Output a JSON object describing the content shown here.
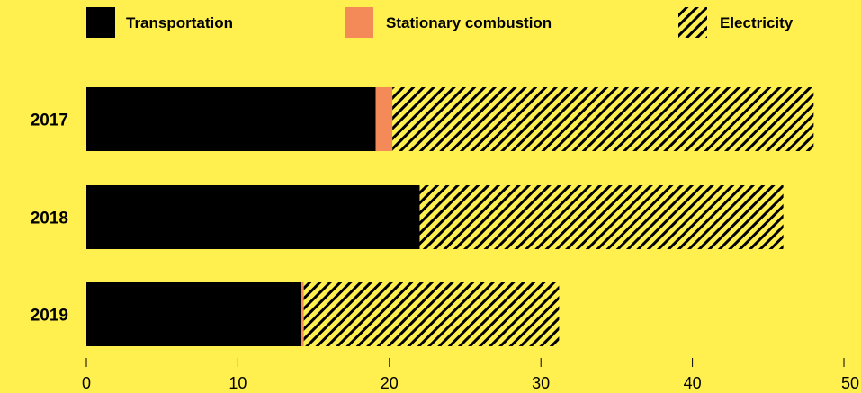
{
  "colors": {
    "background": "#FFF04F",
    "transportation": "#000000",
    "stationary_combustion": "#F48A58",
    "electricity_stripe": "#000000"
  },
  "chart_data": {
    "type": "bar",
    "orientation": "horizontal",
    "stacked": true,
    "title": "",
    "xlabel": "",
    "ylabel": "",
    "categories": [
      "2017",
      "2018",
      "2019"
    ],
    "series": [
      {
        "name": "Transportation",
        "values": [
          19.1,
          22.0,
          14.2
        ],
        "fill": "solid",
        "color": "#000000"
      },
      {
        "name": "Stationary combustion",
        "values": [
          1.1,
          0.0,
          0.15
        ],
        "fill": "solid",
        "color": "#F48A58"
      },
      {
        "name": "Electricity",
        "values": [
          27.8,
          24.0,
          16.85
        ],
        "fill": "hatched",
        "color": "#000000"
      }
    ],
    "xlim": [
      0,
      50
    ],
    "xticks": [
      0,
      10,
      20,
      30,
      40,
      50
    ],
    "legend_position": "top",
    "grid": false
  }
}
